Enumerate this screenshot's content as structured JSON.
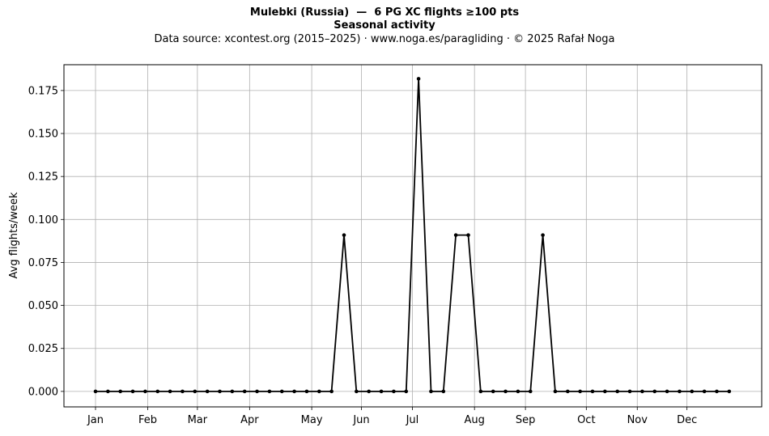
{
  "chart_data": {
    "type": "line",
    "title": "Mulebki (Russia)  —  6 PG XC flights ≥100 pts",
    "subtitle": "Seasonal activity",
    "source_note": "Data source: xcontest.org (2015–2025)  ·  www.noga.es/paragliding  ·  © 2025 Rafał Noga",
    "xlabel": "",
    "ylabel": "Avg flights/week",
    "ylim": [
      -0.009,
      0.19
    ],
    "grid": true,
    "x_ticks": [
      {
        "label": "Jan",
        "week": 1
      },
      {
        "label": "Feb",
        "week": 5.2
      },
      {
        "label": "Mar",
        "week": 9.2
      },
      {
        "label": "Apr",
        "week": 13.4
      },
      {
        "label": "May",
        "week": 18.4
      },
      {
        "label": "Jun",
        "week": 22.4
      },
      {
        "label": "Jul",
        "week": 26.5
      },
      {
        "label": "Aug",
        "week": 31.5
      },
      {
        "label": "Sep",
        "week": 35.6
      },
      {
        "label": "Oct",
        "week": 40.5
      },
      {
        "label": "Nov",
        "week": 44.6
      },
      {
        "label": "Dec",
        "week": 48.6
      }
    ],
    "y_ticks": [
      "0.000",
      "0.025",
      "0.050",
      "0.075",
      "0.100",
      "0.125",
      "0.150",
      "0.175"
    ],
    "y_tick_values": [
      0,
      0.025,
      0.05,
      0.075,
      0.1,
      0.125,
      0.15,
      0.175
    ],
    "series": [
      {
        "color": "#000000",
        "x": [
          1,
          2,
          3,
          4,
          5,
          6,
          7,
          8,
          9,
          10,
          11,
          12,
          13,
          14,
          15,
          16,
          17,
          18,
          19,
          20,
          21,
          22,
          23,
          24,
          25,
          26,
          27,
          28,
          29,
          30,
          31,
          32,
          33,
          34,
          35,
          36,
          37,
          38,
          39,
          40,
          41,
          42,
          43,
          44,
          45,
          46,
          47,
          48,
          49,
          50,
          51,
          52
        ],
        "values": [
          0,
          0,
          0,
          0,
          0,
          0,
          0,
          0,
          0,
          0,
          0,
          0,
          0,
          0,
          0,
          0,
          0,
          0,
          0,
          0,
          0.0909,
          0,
          0,
          0,
          0,
          0,
          0.1818,
          0,
          0,
          0.0909,
          0.0909,
          0,
          0,
          0,
          0,
          0,
          0.0909,
          0,
          0,
          0,
          0,
          0,
          0,
          0,
          0,
          0,
          0,
          0,
          0,
          0,
          0,
          0
        ]
      }
    ]
  }
}
